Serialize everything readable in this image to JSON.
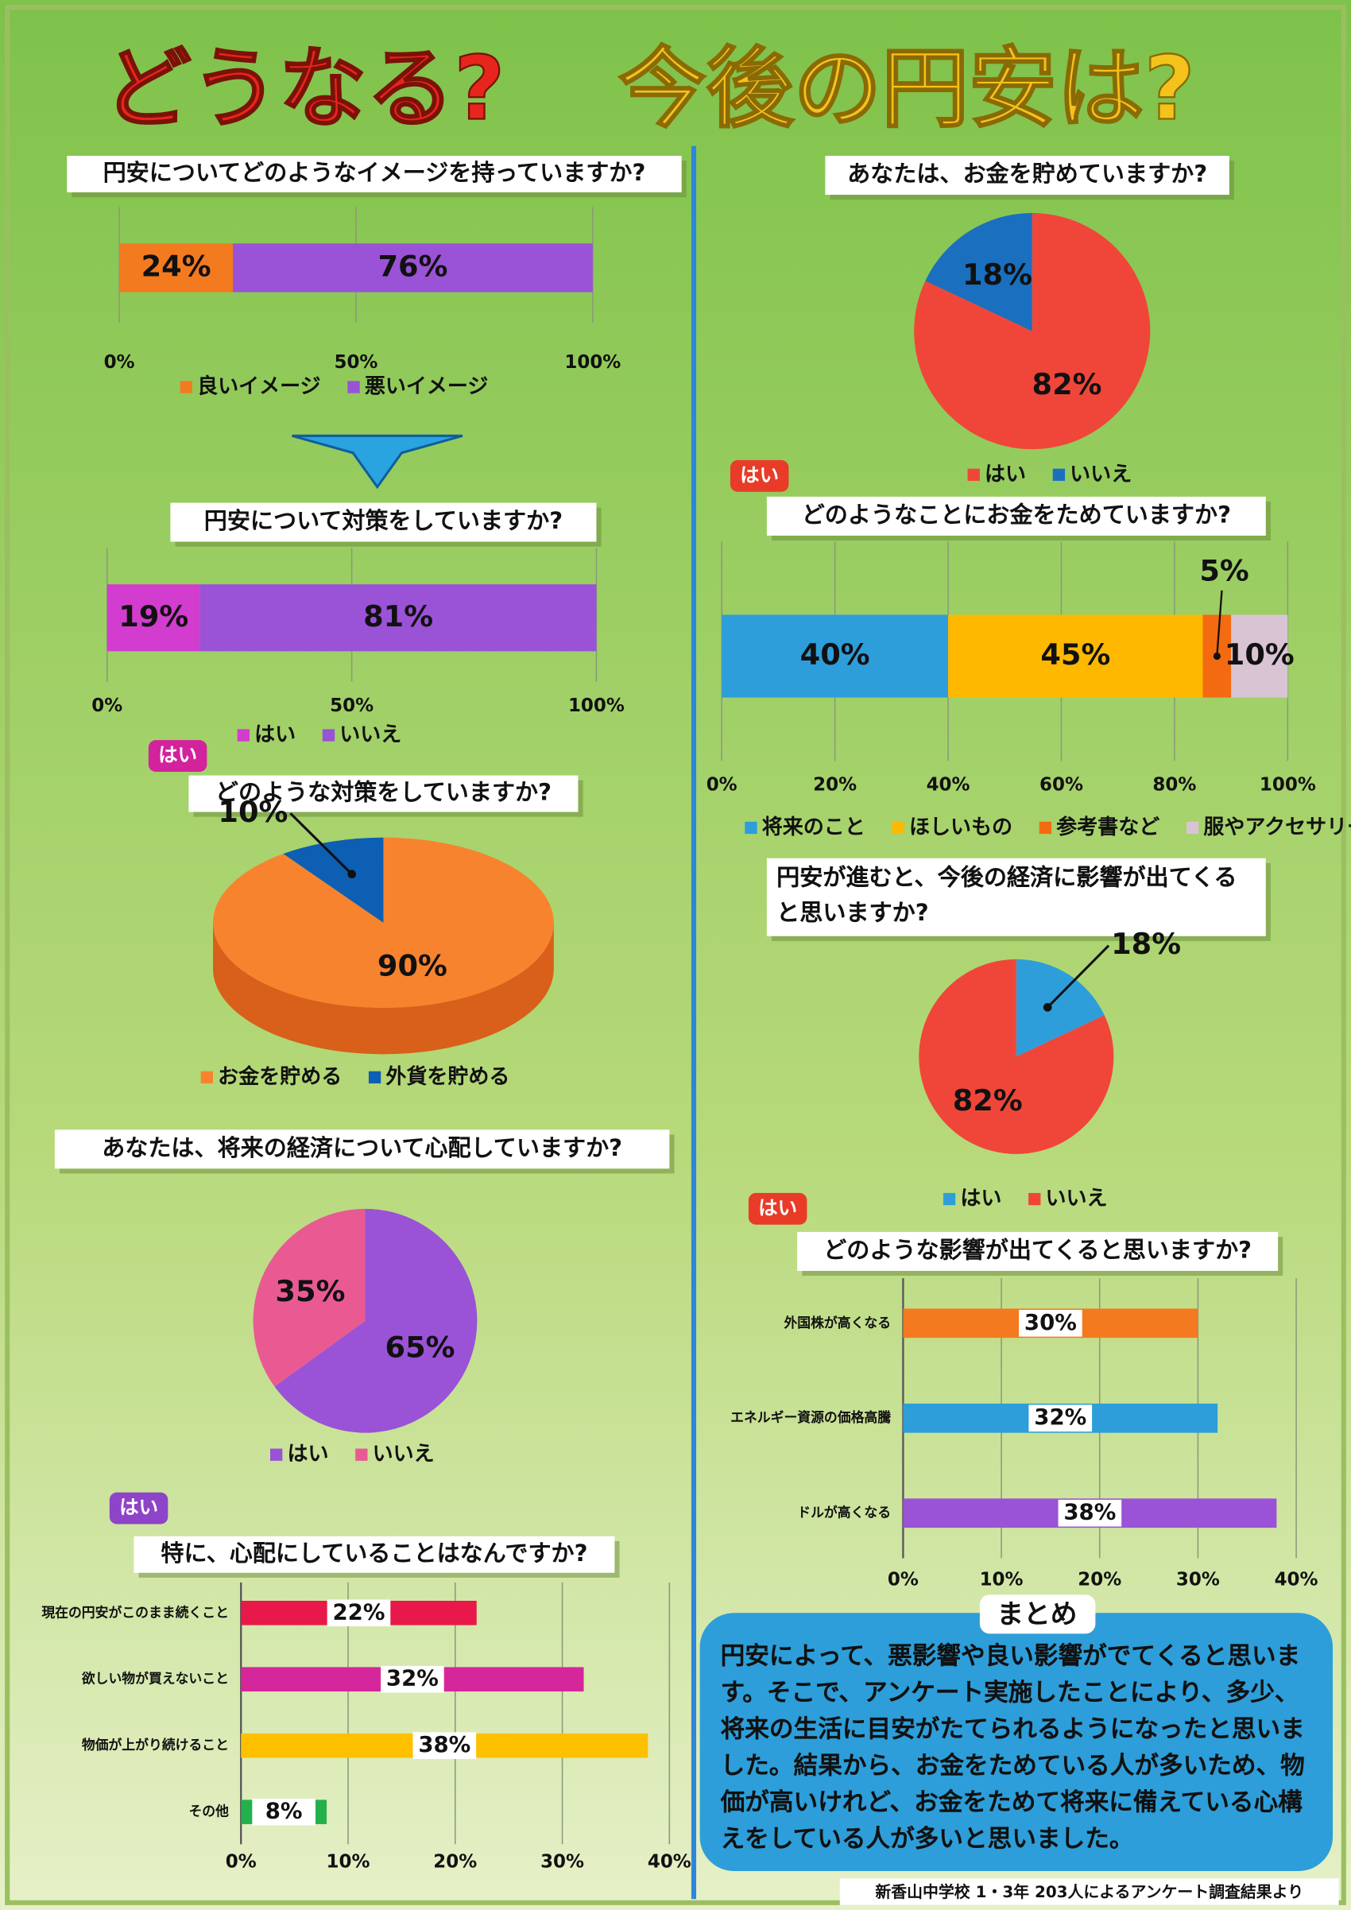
{
  "title": [
    "どうなる?",
    "今後の円安は?"
  ],
  "summary": {
    "heading": "まとめ",
    "text": "円安によって、悪影響や良い影響がでてくると思います。そこで、アンケート実施したことにより、多少、将来の生活に目安がたてられるようになったと思いました。結果から、お金をためている人が多いため、物価が高いけれど、お金をためて将来に備えている心構えをしている人が多いと思いました。"
  },
  "footer": "新香山中学校 1・3年 203人によるアンケート調査結果より",
  "chart_data": [
    {
      "type": "stacked_bar",
      "title": "円安についてどのようなイメージを持っていますか?",
      "series": [
        {
          "name": "良いイメージ",
          "color": "#f47a20",
          "values": [
            24
          ],
          "value_labels": [
            "24%"
          ]
        },
        {
          "name": "悪いイメージ",
          "color": "#9a52d6",
          "values": [
            76
          ],
          "value_labels": [
            "76%"
          ]
        }
      ],
      "xlim": [
        0,
        100
      ],
      "xticks": [
        {
          "value": 0,
          "label": "0%"
        },
        {
          "value": 50,
          "label": "50%"
        },
        {
          "value": 100,
          "label": "100%"
        }
      ],
      "grid": true
    },
    {
      "type": "stacked_bar",
      "title": "円安について対策をしていますか?",
      "series": [
        {
          "name": "はい",
          "color": "#d23ccf",
          "values": [
            19
          ],
          "value_labels": [
            "19%"
          ]
        },
        {
          "name": "いいえ",
          "color": "#9a52d6",
          "values": [
            81
          ],
          "value_labels": [
            "81%"
          ]
        }
      ],
      "xlim": [
        0,
        100
      ],
      "xticks": [
        {
          "value": 0,
          "label": "0%"
        },
        {
          "value": 50,
          "label": "50%"
        },
        {
          "value": 100,
          "label": "100%"
        }
      ],
      "grid": true
    },
    {
      "type": "pie",
      "badge": "はい",
      "title": "どのような対策をしていますか?",
      "categories": [
        "お金を貯める",
        "外貨を貯める"
      ],
      "values": [
        90,
        10
      ],
      "value_labels": [
        "90%",
        "10%"
      ],
      "colors": [
        "#f8832e",
        "#0d5fb3"
      ]
    },
    {
      "type": "pie",
      "title": "あなたは、将来の経済について心配していますか?",
      "categories": [
        "はい",
        "いいえ"
      ],
      "values": [
        65,
        35
      ],
      "value_labels": [
        "65%",
        "35%"
      ],
      "colors": [
        "#9a52d6",
        "#e95a93"
      ]
    },
    {
      "type": "bar",
      "badge": "はい",
      "title": "特に、心配にしていることはなんですか?",
      "categories": [
        "現在の円安がこのまま続くこと",
        "欲しい物が買えないこと",
        "物価が上がり続けること",
        "その他"
      ],
      "values": [
        22,
        32,
        38,
        8
      ],
      "value_labels": [
        "22%",
        "32%",
        "38%",
        "8%"
      ],
      "colors": [
        "#e8184a",
        "#d6269c",
        "#ffc000",
        "#22b14c"
      ],
      "xlim": [
        0,
        40
      ],
      "xticks": [
        {
          "value": 0,
          "label": "0%"
        },
        {
          "value": 10,
          "label": "10%"
        },
        {
          "value": 20,
          "label": "20%"
        },
        {
          "value": 30,
          "label": "30%"
        },
        {
          "value": 40,
          "label": "40%"
        }
      ],
      "grid": true
    },
    {
      "type": "pie",
      "title": "あなたは、お金を貯めていますか?",
      "categories": [
        "はい",
        "いいえ"
      ],
      "values": [
        82,
        18
      ],
      "value_labels": [
        "82%",
        "18%"
      ],
      "colors": [
        "#f0463a",
        "#1a6fbf"
      ]
    },
    {
      "type": "stacked_bar",
      "badge": "はい",
      "title": "どのようなことにお金をためていますか?",
      "series": [
        {
          "name": "将来のこと",
          "color": "#2d9ed9",
          "values": [
            40
          ],
          "value_labels": [
            "40%"
          ]
        },
        {
          "name": "ほしいもの",
          "color": "#ffb800",
          "values": [
            45
          ],
          "value_labels": [
            "45%"
          ]
        },
        {
          "name": "参考書など",
          "color": "#f46a10",
          "values": [
            5
          ],
          "value_labels": [
            "5%"
          ]
        },
        {
          "name": "服やアクセサリーなど",
          "color": "#d9c4d3",
          "values": [
            10
          ],
          "value_labels": [
            "10%"
          ]
        }
      ],
      "xlim": [
        0,
        100
      ],
      "xticks": [
        {
          "value": 0,
          "label": "0%"
        },
        {
          "value": 20,
          "label": "20%"
        },
        {
          "value": 40,
          "label": "40%"
        },
        {
          "value": 60,
          "label": "60%"
        },
        {
          "value": 80,
          "label": "80%"
        },
        {
          "value": 100,
          "label": "100%"
        }
      ],
      "grid": true
    },
    {
      "type": "pie",
      "title": "円安が進むと、今後の経済に影響が出てくると思いますか?",
      "categories": [
        "はい",
        "いいえ"
      ],
      "values": [
        18,
        82
      ],
      "value_labels": [
        "18%",
        "82%"
      ],
      "colors": [
        "#2d9ed9",
        "#f0463a"
      ]
    },
    {
      "type": "bar",
      "badge": "はい",
      "title": "どのような影響が出てくると思いますか?",
      "categories": [
        "外国株が高くなる",
        "エネルギー資源の価格高騰",
        "ドルが高くなる"
      ],
      "values": [
        30,
        32,
        38
      ],
      "value_labels": [
        "30%",
        "32%",
        "38%"
      ],
      "colors": [
        "#f47a20",
        "#2d9ed9",
        "#9a52d6"
      ],
      "xlim": [
        0,
        40
      ],
      "xticks": [
        {
          "value": 0,
          "label": "0%"
        },
        {
          "value": 10,
          "label": "10%"
        },
        {
          "value": 20,
          "label": "20%"
        },
        {
          "value": 30,
          "label": "30%"
        },
        {
          "value": 40,
          "label": "40%"
        }
      ],
      "grid": true
    }
  ]
}
